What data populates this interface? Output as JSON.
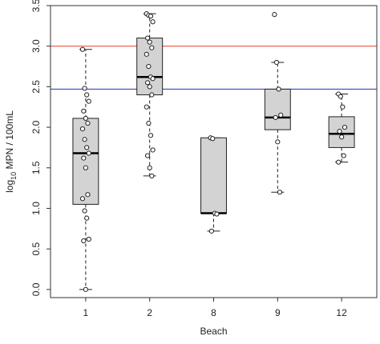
{
  "chart_data": {
    "type": "boxplot",
    "xlabel": "Beach",
    "ylabel_main": "log",
    "ylabel_sub": "10",
    "ylabel_rest": " MPN / 100mL",
    "ylim": [
      -0.1,
      3.5
    ],
    "yticks": [
      "0.0",
      "0.5",
      "1.0",
      "1.5",
      "2.0",
      "2.5",
      "3.0",
      "3.5"
    ],
    "categories": [
      "1",
      "2",
      "8",
      "9",
      "12"
    ],
    "reference_lines": [
      {
        "value": 3.0,
        "color": "#e8533f"
      },
      {
        "value": 2.47,
        "color": "#3a46c9"
      }
    ],
    "box_fill": "#d3d3d3",
    "groups": [
      {
        "category": "1",
        "q1": 1.05,
        "median": 1.68,
        "q3": 2.11,
        "whisker_low": 0.0,
        "whisker_high": 2.96,
        "points": [
          2.96,
          2.48,
          2.4,
          2.32,
          2.2,
          2.11,
          2.05,
          1.98,
          1.85,
          1.75,
          1.68,
          1.62,
          1.5,
          1.17,
          1.12,
          0.97,
          0.88,
          0.62,
          0.6,
          0.0
        ]
      },
      {
        "category": "2",
        "q1": 2.4,
        "median": 2.62,
        "q3": 3.1,
        "whisker_low": 1.4,
        "whisker_high": 3.4,
        "points": [
          3.4,
          3.38,
          3.37,
          3.3,
          3.1,
          3.05,
          2.98,
          2.9,
          2.75,
          2.62,
          2.6,
          2.55,
          2.5,
          2.4,
          2.25,
          2.05,
          1.9,
          1.72,
          1.65,
          1.5,
          1.4
        ]
      },
      {
        "category": "8",
        "q1": 0.94,
        "median": 0.94,
        "q3": 1.87,
        "whisker_low": 0.72,
        "whisker_high": 1.87,
        "points": [
          1.87,
          1.86,
          0.94,
          0.93,
          0.72
        ]
      },
      {
        "category": "9",
        "q1": 1.97,
        "median": 2.12,
        "q3": 2.47,
        "whisker_low": 1.2,
        "whisker_high": 2.8,
        "points": [
          3.39,
          2.8,
          2.47,
          2.15,
          2.12,
          1.82,
          1.2
        ]
      },
      {
        "category": "12",
        "q1": 1.75,
        "median": 1.92,
        "q3": 2.13,
        "whisker_low": 1.57,
        "whisker_high": 2.41,
        "points": [
          2.41,
          2.38,
          2.25,
          2.0,
          1.95,
          1.88,
          1.65,
          1.57
        ]
      }
    ]
  }
}
